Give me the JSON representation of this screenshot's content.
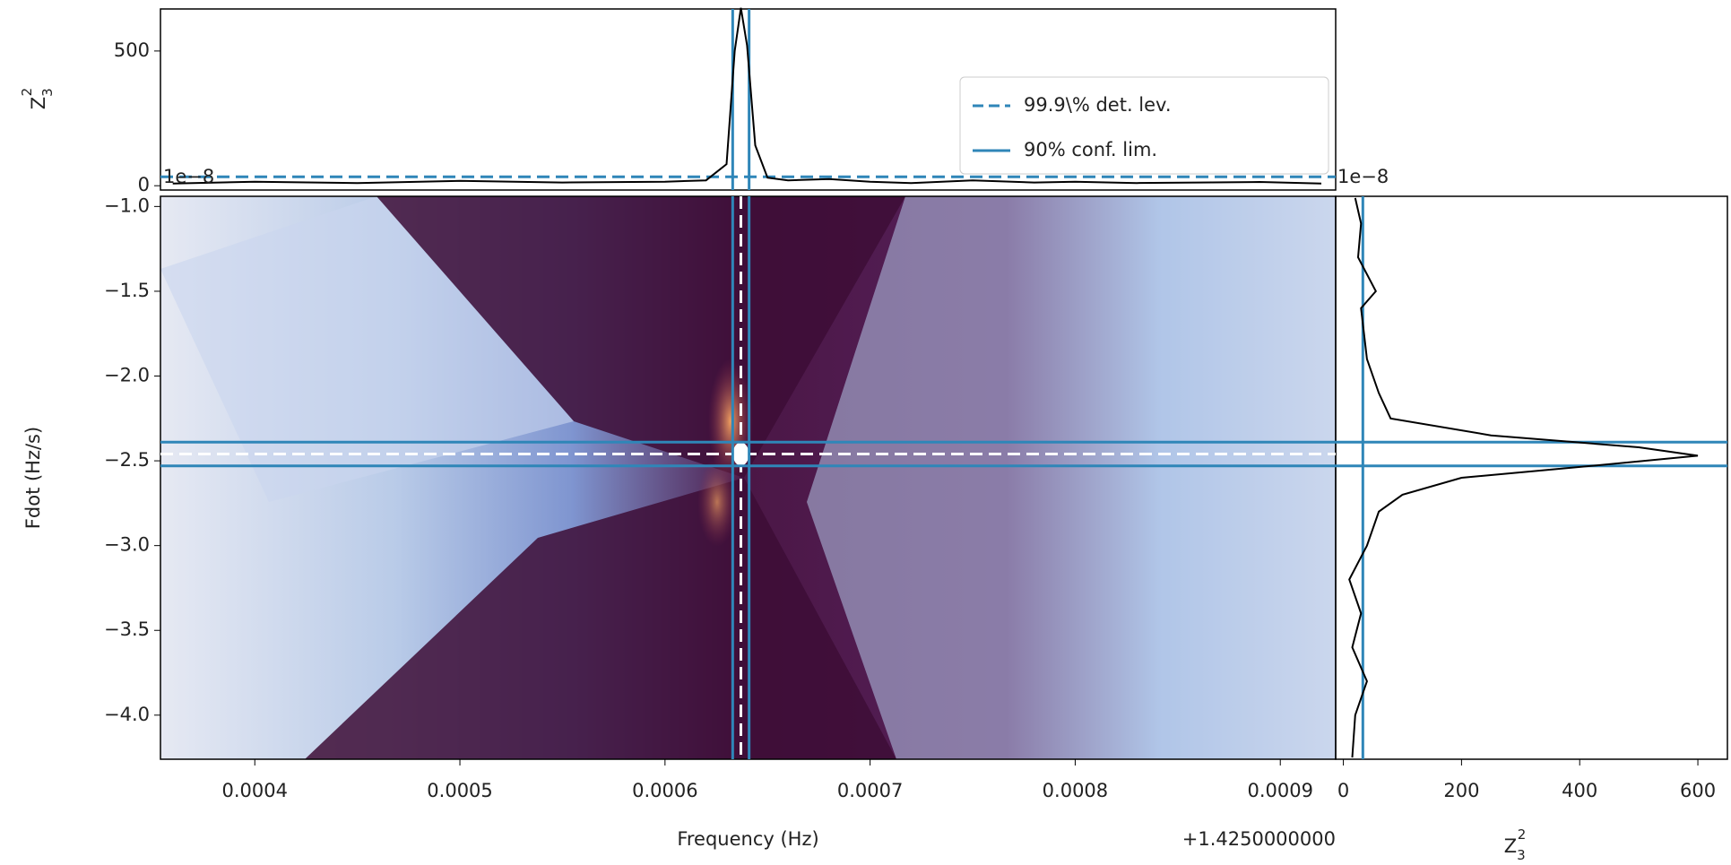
{
  "chart_data": [
    {
      "type": "line",
      "ylabel": {
        "base": "Z",
        "sub": "3",
        "sup": "2"
      },
      "xlim": [
        0.000354,
        0.000927
      ],
      "ylim": [
        -16,
        656
      ],
      "yticks": [
        0,
        500
      ],
      "x": [
        0.00036,
        0.0004,
        0.00045,
        0.0005,
        0.00055,
        0.0006,
        0.00062,
        0.00063,
        0.000634,
        0.000637,
        0.00064,
        0.000644,
        0.00065,
        0.00066,
        0.00068,
        0.0007,
        0.00072,
        0.00075,
        0.00078,
        0.0008,
        0.00083,
        0.00086,
        0.00089,
        0.00092
      ],
      "values": [
        8,
        15,
        10,
        18,
        12,
        15,
        20,
        80,
        500,
        660,
        520,
        150,
        30,
        20,
        25,
        15,
        10,
        20,
        12,
        15,
        10,
        12,
        14,
        8
      ],
      "color": "#000000",
      "det_level": {
        "name": "99.9\\% det. lev.",
        "value": 33,
        "color": "#2f86b8"
      },
      "conf_lim": {
        "name": "90% conf. lim.",
        "values": [
          0.000633,
          0.000641
        ],
        "color": "#2f86b8"
      },
      "legend": "upper right"
    },
    {
      "type": "heatmap",
      "xlabel": "Frequency (Hz)",
      "ylabel": "Fdot (Hz/s)",
      "x_offset": "+1.4250000000",
      "y_multiplier": "1e−8",
      "xlim": [
        0.000354,
        0.000927
      ],
      "ylim": [
        -4.26,
        -0.94
      ],
      "xticks": [
        0.0004,
        0.0005,
        0.0006,
        0.0007,
        0.0008,
        0.0009
      ],
      "yticks": [
        {
          "value": -1.0,
          "label": "−1.0"
        },
        {
          "value": -1.5,
          "label": "−1.5"
        },
        {
          "value": -2.0,
          "label": "−2.0"
        },
        {
          "value": -2.5,
          "label": "−2.5"
        },
        {
          "value": -3.0,
          "label": "−3.0"
        },
        {
          "value": -3.5,
          "label": "−3.5"
        },
        {
          "value": -4.0,
          "label": "−4.0"
        }
      ],
      "best": {
        "x": 0.000637,
        "y": -2.46
      },
      "conf_x": [
        0.000633,
        0.000641
      ],
      "conf_y": [
        -2.39,
        -2.53
      ],
      "color": "#2f86b8"
    },
    {
      "type": "line",
      "orientation": "horizontal",
      "xlabel": {
        "base": "Z",
        "sub": "3",
        "sup": "2"
      },
      "y_multiplier": "1e−8",
      "xlim": [
        -13,
        650
      ],
      "ylim": [
        -4.26,
        -0.94
      ],
      "xticks": [
        0,
        200,
        400,
        600
      ],
      "y": [
        -0.95,
        -1.1,
        -1.3,
        -1.5,
        -1.6,
        -1.9,
        -2.1,
        -2.25,
        -2.35,
        -2.42,
        -2.47,
        -2.52,
        -2.6,
        -2.7,
        -2.8,
        -3.0,
        -3.2,
        -3.4,
        -3.6,
        -3.8,
        -4.0,
        -4.25
      ],
      "values": [
        20,
        30,
        25,
        55,
        30,
        40,
        60,
        80,
        250,
        500,
        600,
        450,
        200,
        100,
        60,
        40,
        10,
        30,
        15,
        40,
        20,
        15
      ],
      "color": "#000000",
      "det_level": 33,
      "conf_y": [
        -2.39,
        -2.53
      ],
      "line_color": "#2f86b8"
    }
  ]
}
